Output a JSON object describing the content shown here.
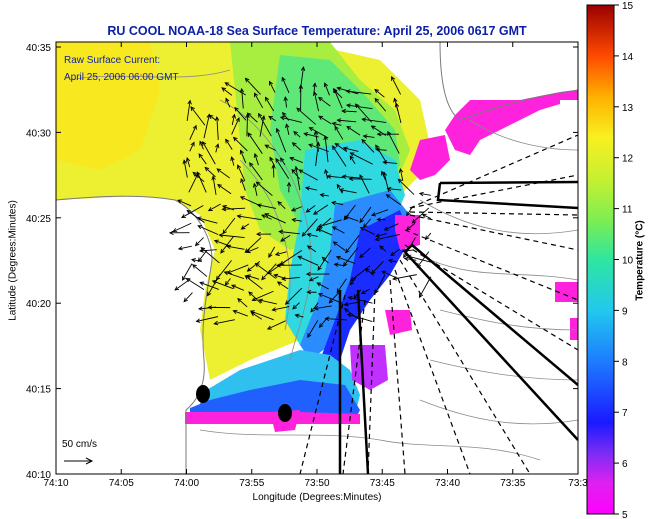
{
  "title": "RU COOL  NOAA-18  Sea Surface Temperature:  April 25, 2006 0617 GMT",
  "legend": {
    "line1": "Raw Surface Current:",
    "line2": "April 25, 2006 06:00 GMT",
    "scale_label": "50 cm/s"
  },
  "axes": {
    "xlabel": "Longitude (Degrees:Minutes)",
    "ylabel": "Latitude (Degrees:Minutes)",
    "x_ticks": [
      "74:10",
      "74:05",
      "74:00",
      "73:55",
      "73:50",
      "73:45",
      "73:40",
      "73:35",
      "73:3"
    ],
    "y_ticks": [
      "40:35",
      "40:30",
      "40:25",
      "40:20",
      "40:15",
      "40:10"
    ]
  },
  "colorbar": {
    "label": "Temperature (°C)",
    "ticks": [
      "15",
      "14",
      "13",
      "12",
      "11",
      "10",
      "9",
      "8",
      "7",
      "6",
      "5"
    ],
    "min": 5,
    "max": 15
  },
  "colors": {
    "title": "#0a1fa6",
    "land": "#ffffff",
    "pink": "#ff22dd"
  },
  "icons": [
    "scale-arrow-icon",
    "station-dot-icon"
  ]
}
